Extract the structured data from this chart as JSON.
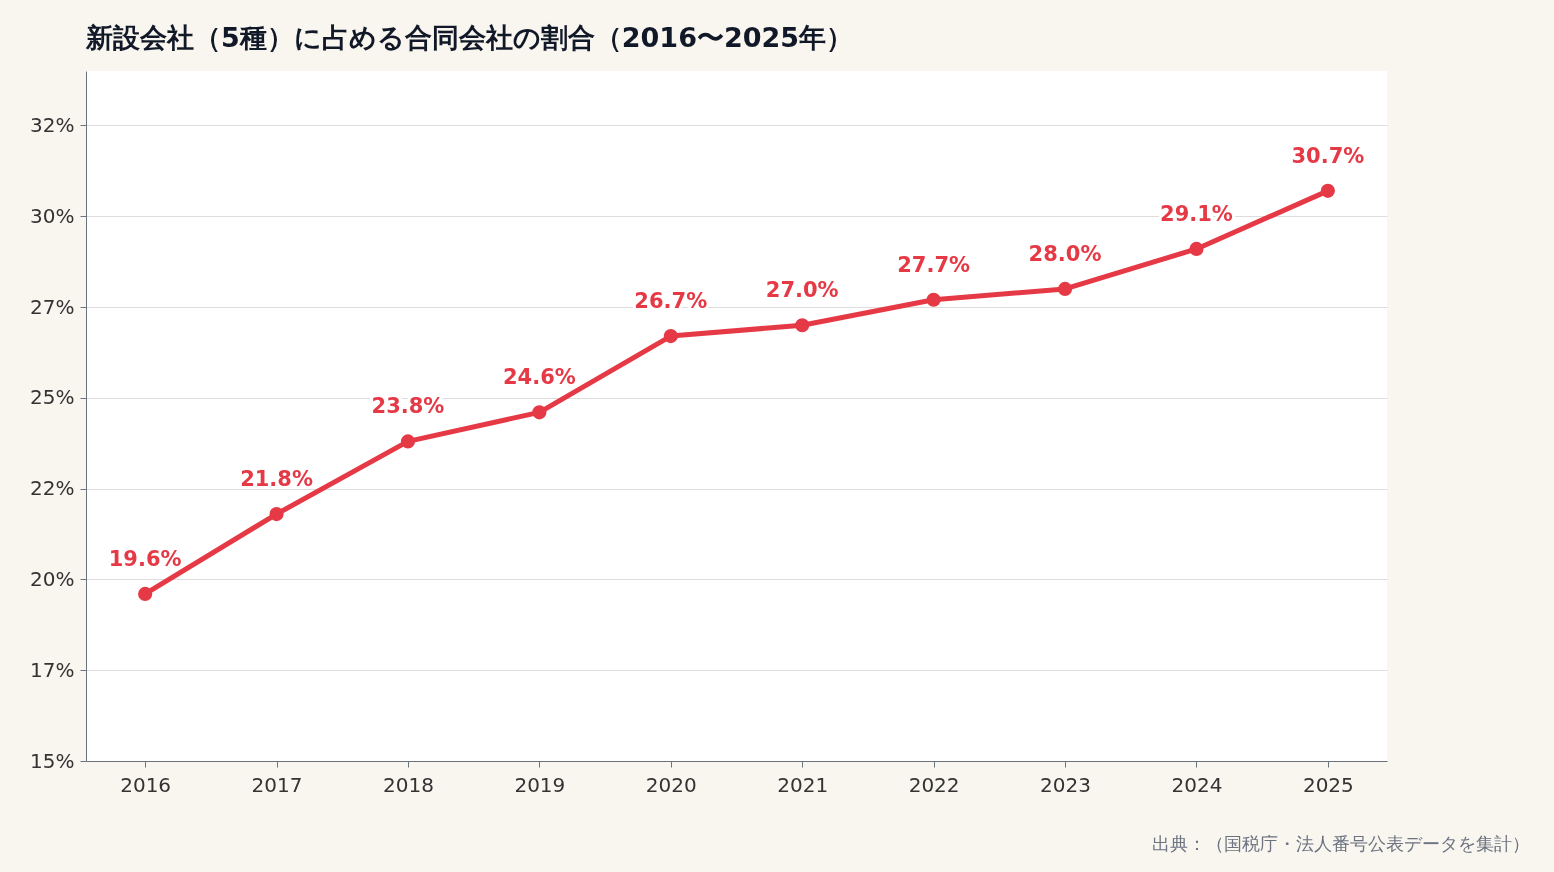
{
  "chart_data": {
    "type": "line",
    "title": "新設会社（5種）に占める合同会社の割合（2016〜2025年）",
    "categories": [
      "2016",
      "2017",
      "2018",
      "2019",
      "2020",
      "2021",
      "2022",
      "2023",
      "2024",
      "2025"
    ],
    "series": [
      {
        "color": "#e63946",
        "values": [
          19.6,
          21.8,
          23.8,
          24.6,
          26.7,
          27.0,
          27.7,
          28.0,
          29.1,
          30.7
        ]
      }
    ],
    "ylim": [
      15,
      34
    ],
    "yticks": [
      {
        "value": 15,
        "label": "15%"
      },
      {
        "value": 17.5,
        "label": "17%"
      },
      {
        "value": 20,
        "label": "20%"
      },
      {
        "value": 22.5,
        "label": "22%"
      },
      {
        "value": 25,
        "label": "25%"
      },
      {
        "value": 27.5,
        "label": "27%"
      },
      {
        "value": 30,
        "label": "30%"
      },
      {
        "value": 32.5,
        "label": "32%"
      }
    ],
    "value_labels": [
      "19.6%",
      "21.8%",
      "23.8%",
      "24.6%",
      "26.7%",
      "27.0%",
      "27.7%",
      "28.0%",
      "29.1%",
      "30.7%"
    ],
    "grid": "y",
    "marker": "circle",
    "line_style": "solid",
    "legend": false,
    "annotations": [
      "出典：（国税庁・法人番号公表データを集計）"
    ]
  }
}
